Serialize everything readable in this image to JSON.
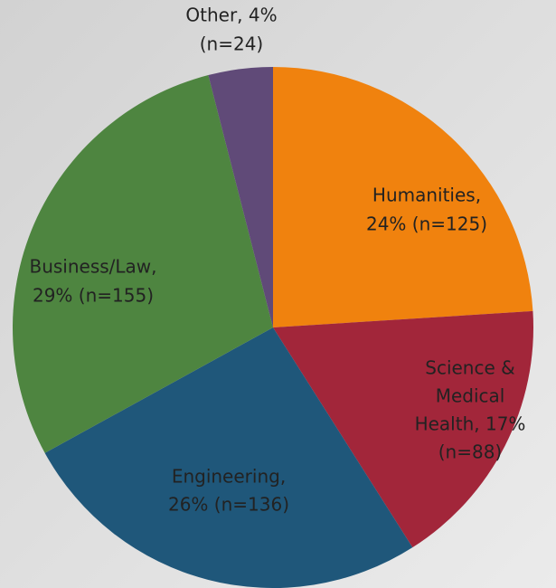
{
  "chart_data": {
    "type": "pie",
    "values": [
      24,
      17,
      26,
      29,
      4
    ],
    "value_labels": [
      [
        "Humanities,",
        "24% (n=125)"
      ],
      [
        "Science &",
        "Medical",
        "Health, 17%",
        "(n=88)"
      ],
      [
        "Engineering,",
        "26% (n=136)"
      ],
      [
        "Business/Law,",
        "29% (n=155)"
      ],
      [
        "Other, 4%",
        "(n=24)"
      ]
    ],
    "colors": [
      "#f0820e",
      "#a2263a",
      "#1f577a",
      "#4e8540",
      "#604a78"
    ]
  }
}
